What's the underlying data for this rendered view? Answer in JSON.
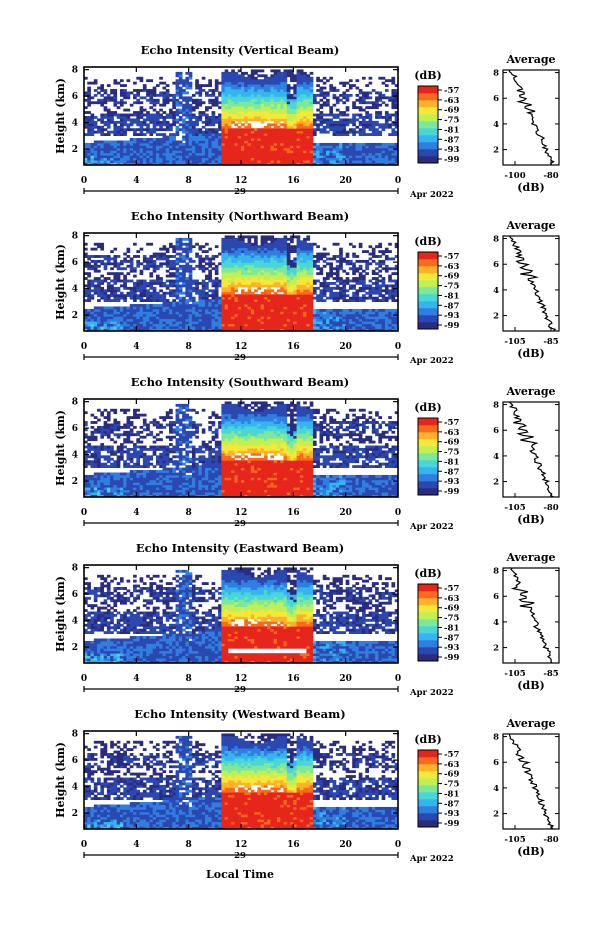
{
  "chart_data": [
    {
      "type": "heatmap",
      "title": "Echo Intensity (Vertical Beam)",
      "ylabel": "Height (km)",
      "yticks": [
        "2",
        "4",
        "6",
        "8"
      ],
      "xticks": [
        "0",
        "4",
        "8",
        "12",
        "16",
        "20",
        "0"
      ],
      "date_day": "29",
      "date_label": "Apr 2022",
      "ylim": [
        0.8,
        8.2
      ],
      "xlim": [
        0,
        24
      ],
      "colorbar": {
        "unit": "(dB)",
        "ticks": [
          "-57",
          "-63",
          "-69",
          "-75",
          "-81",
          "-87",
          "-93",
          "-99"
        ]
      },
      "average": {
        "title": "Average",
        "xlabel": "(dB)",
        "xticks": [
          "-100",
          "-80"
        ],
        "yticks": [
          "2",
          "4",
          "6",
          "8"
        ]
      }
    },
    {
      "type": "heatmap",
      "title": "Echo Intensity (Northward Beam)",
      "ylabel": "Height (km)",
      "yticks": [
        "2",
        "4",
        "6",
        "8"
      ],
      "xticks": [
        "0",
        "4",
        "8",
        "12",
        "16",
        "20",
        "0"
      ],
      "date_day": "29",
      "date_label": "Apr 2022",
      "ylim": [
        0.8,
        8.2
      ],
      "xlim": [
        0,
        24
      ],
      "colorbar": {
        "unit": "(dB)",
        "ticks": [
          "-57",
          "-63",
          "-69",
          "-75",
          "-81",
          "-87",
          "-93",
          "-99"
        ]
      },
      "average": {
        "title": "Average",
        "xlabel": "(dB)",
        "xticks": [
          "-105",
          "-85"
        ],
        "yticks": [
          "2",
          "4",
          "6",
          "8"
        ]
      }
    },
    {
      "type": "heatmap",
      "title": "Echo Intensity (Southward Beam)",
      "ylabel": "Height (km)",
      "yticks": [
        "2",
        "4",
        "6",
        "8"
      ],
      "xticks": [
        "0",
        "4",
        "8",
        "12",
        "16",
        "20",
        "0"
      ],
      "date_day": "29",
      "date_label": "Apr 2022",
      "ylim": [
        0.8,
        8.2
      ],
      "xlim": [
        0,
        24
      ],
      "colorbar": {
        "unit": "(dB)",
        "ticks": [
          "-57",
          "-63",
          "-69",
          "-75",
          "-81",
          "-87",
          "-93",
          "-99"
        ]
      },
      "average": {
        "title": "Average",
        "xlabel": "(dB)",
        "xticks": [
          "-105",
          "-80"
        ],
        "yticks": [
          "2",
          "4",
          "6",
          "8"
        ]
      }
    },
    {
      "type": "heatmap",
      "title": "Echo Intensity (Eastward Beam)",
      "ylabel": "Height (km)",
      "yticks": [
        "2",
        "4",
        "6",
        "8"
      ],
      "xticks": [
        "0",
        "4",
        "8",
        "12",
        "16",
        "20",
        "0"
      ],
      "date_day": "29",
      "date_label": "Apr 2022",
      "ylim": [
        0.8,
        8.2
      ],
      "xlim": [
        0,
        24
      ],
      "colorbar": {
        "unit": "(dB)",
        "ticks": [
          "-57",
          "-63",
          "-69",
          "-75",
          "-81",
          "-87",
          "-93",
          "-99"
        ]
      },
      "average": {
        "title": "Average",
        "xlabel": "(dB)",
        "xticks": [
          "-105",
          "-85"
        ],
        "yticks": [
          "2",
          "4",
          "6",
          "8"
        ]
      }
    },
    {
      "type": "heatmap",
      "title": "Echo Intensity (Westward Beam)",
      "ylabel": "Height (km)",
      "yticks": [
        "2",
        "4",
        "6",
        "8"
      ],
      "xticks": [
        "0",
        "4",
        "8",
        "12",
        "16",
        "20",
        "0"
      ],
      "date_day": "29",
      "date_label": "Apr 2022",
      "ylim": [
        0.8,
        8.2
      ],
      "xlim": [
        0,
        24
      ],
      "colorbar": {
        "unit": "(dB)",
        "ticks": [
          "-57",
          "-63",
          "-69",
          "-75",
          "-81",
          "-87",
          "-93",
          "-99"
        ]
      },
      "average": {
        "title": "Average",
        "xlabel": "(dB)",
        "xticks": [
          "-105",
          "-80"
        ],
        "yticks": [
          "2",
          "4",
          "6",
          "8"
        ]
      }
    }
  ],
  "xlabel": "Local Time",
  "colormap": [
    "#2a2c80",
    "#2b48b0",
    "#2f7ee0",
    "#36b4f0",
    "#4ad6d6",
    "#7ee89a",
    "#c2f054",
    "#f4e838",
    "#fdb22a",
    "#f86a1c",
    "#e6261c"
  ]
}
